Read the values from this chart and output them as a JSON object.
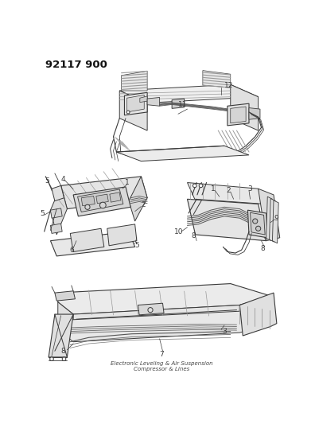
{
  "background_color": "#ffffff",
  "title_text": "92117 900",
  "title_fontsize": 9.5,
  "title_fontweight": "bold",
  "fig_width": 3.96,
  "fig_height": 5.33,
  "dpi": 100,
  "line_color": "#3a3a3a",
  "light_gray": "#cccccc",
  "mid_gray": "#999999",
  "description_text": "Electronic Leveling & Air Suspension\nCompressor & Lines",
  "desc_fontsize": 5.0
}
